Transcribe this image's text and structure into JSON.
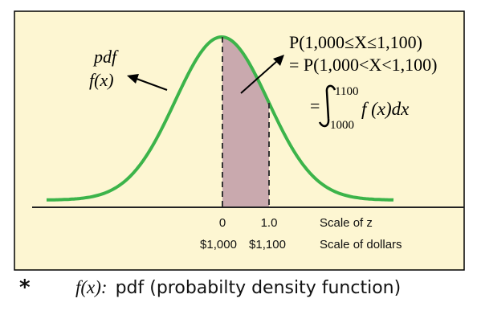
{
  "figure": {
    "pdf_label_line1": "pdf",
    "pdf_label_line2": "f(x)",
    "probability_line1": "P(1,000≤X≤1,100)",
    "probability_line2": "= P(1,000<X<1,100)",
    "integral_equals": "=",
    "integral_upper": "1100",
    "integral_lower": "1000",
    "integrand": "f (x)dx",
    "z_scale": {
      "ticks": [
        "0",
        "1.0"
      ],
      "label": "Scale of z"
    },
    "dollar_scale": {
      "ticks": [
        "$1,000",
        "$1,100"
      ],
      "label": "Scale of dollars"
    },
    "colors": {
      "background": "#fdf6d2",
      "curve": "#3cb44a",
      "shaded_area": "#c9a9ae",
      "border": "#000000"
    }
  },
  "footnote": {
    "marker": "*",
    "term": "f(x):",
    "text": "pdf (probabilty density function)"
  }
}
